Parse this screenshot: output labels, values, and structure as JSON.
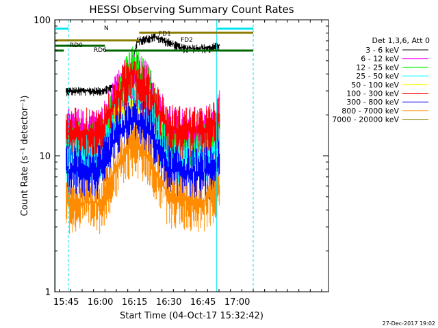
{
  "chart_data": {
    "type": "line",
    "title": "HESSI Observing Summary Count Rates",
    "xlabel": "Start Time (04-Oct-17 15:32:42)",
    "ylabel": "Count Rate (s⁻¹ detector⁻¹)",
    "y_scale": "log",
    "ylim": [
      1,
      100
    ],
    "xlim_minutes_from_1532": [
      8,
      128
    ],
    "x_ticks": [
      "15:45",
      "16:00",
      "16:15",
      "16:30",
      "16:45",
      "17:00"
    ],
    "y_ticks": [
      "1",
      "10",
      "100"
    ],
    "grid": false,
    "legend_position": "right",
    "legend_header": "Det 1,3,6, Att 0",
    "series": [
      {
        "name": "3 - 6 keV",
        "color": "#000000",
        "start": 15.75,
        "end": 16.87,
        "points": [
          [
            15.75,
            30
          ],
          [
            16.0,
            30
          ],
          [
            16.2,
            35
          ],
          [
            16.27,
            70
          ],
          [
            16.4,
            75
          ],
          [
            16.6,
            62
          ],
          [
            16.8,
            62
          ],
          [
            16.87,
            65
          ]
        ]
      },
      {
        "name": "6 - 12 keV",
        "color": "#ff00ff",
        "start": 15.75,
        "end": 16.87,
        "points": [
          [
            15.75,
            15
          ],
          [
            16.0,
            15
          ],
          [
            16.1,
            25
          ],
          [
            16.23,
            42
          ],
          [
            16.35,
            32
          ],
          [
            16.5,
            16
          ],
          [
            16.75,
            15
          ],
          [
            16.87,
            20
          ]
        ]
      },
      {
        "name": "12 - 25 keV",
        "color": "#00ff00",
        "start": 15.75,
        "end": 16.87,
        "points": [
          [
            15.75,
            12
          ],
          [
            16.0,
            12
          ],
          [
            16.1,
            22
          ],
          [
            16.23,
            45
          ],
          [
            16.35,
            32
          ],
          [
            16.5,
            12
          ],
          [
            16.75,
            11
          ],
          [
            16.87,
            17
          ]
        ]
      },
      {
        "name": "25 - 50 keV",
        "color": "#00ffff",
        "start": 15.75,
        "end": 16.87,
        "points": [
          [
            15.75,
            10
          ],
          [
            16.0,
            10
          ],
          [
            16.1,
            18
          ],
          [
            16.23,
            30
          ],
          [
            16.35,
            24
          ],
          [
            16.5,
            10
          ],
          [
            16.75,
            10
          ],
          [
            16.87,
            13
          ]
        ]
      },
      {
        "name": "50 - 100 keV",
        "color": "#ffff00",
        "start": 16.1,
        "end": 16.3,
        "points": [
          [
            16.1,
            20
          ],
          [
            16.23,
            23
          ],
          [
            16.3,
            20
          ]
        ]
      },
      {
        "name": "100 - 300 keV",
        "color": "#ff0000",
        "start": 15.75,
        "end": 16.87,
        "points": [
          [
            15.75,
            15
          ],
          [
            16.0,
            15
          ],
          [
            16.1,
            24
          ],
          [
            16.23,
            42
          ],
          [
            16.35,
            30
          ],
          [
            16.5,
            16
          ],
          [
            16.75,
            15
          ],
          [
            16.87,
            18
          ]
        ]
      },
      {
        "name": "300 - 800 keV",
        "color": "#0000ff",
        "start": 15.75,
        "end": 16.87,
        "points": [
          [
            15.75,
            8
          ],
          [
            16.0,
            8
          ],
          [
            16.1,
            13
          ],
          [
            16.23,
            19
          ],
          [
            16.35,
            16
          ],
          [
            16.5,
            8
          ],
          [
            16.75,
            7.5
          ],
          [
            16.87,
            9
          ]
        ]
      },
      {
        "name": "800 - 7000 keV",
        "color": "#ff8c00",
        "start": 15.75,
        "end": 16.87,
        "points": [
          [
            15.75,
            4.5
          ],
          [
            16.0,
            4.5
          ],
          [
            16.1,
            7.5
          ],
          [
            16.23,
            12
          ],
          [
            16.35,
            10
          ],
          [
            16.5,
            5
          ],
          [
            16.75,
            4.5
          ],
          [
            16.87,
            6
          ]
        ]
      },
      {
        "name": "7000 - 20000 keV",
        "color": "#8b7d00",
        "start": 16.2,
        "end": 16.3,
        "points": []
      }
    ],
    "annotations": [
      {
        "text": "N",
        "color": "#00e5ee"
      },
      {
        "text": "FD1",
        "color": "#8b7d00"
      },
      {
        "text": "FD2",
        "color": "#8b7d00"
      },
      {
        "text": "RD0",
        "color": "#006400"
      },
      {
        "text": "RD6",
        "color": "#006400"
      }
    ],
    "footer": "27-Dec-2017 19:02"
  }
}
